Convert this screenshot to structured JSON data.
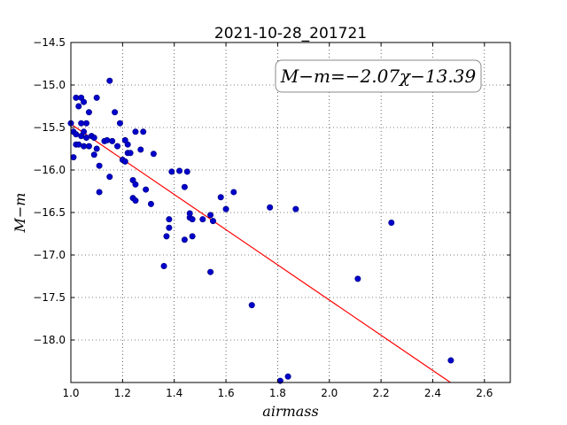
{
  "chart_data": {
    "type": "scatter",
    "title": "2021-10-28_201721",
    "xlabel": "airmass",
    "ylabel": "M−m",
    "annotation": "M−m=−2.07χ−13.39",
    "xlim": [
      1.0,
      2.7
    ],
    "ylim": [
      -14.5,
      -18.5
    ],
    "grid": true,
    "xticks": [
      "1.0",
      "1.2",
      "1.4",
      "1.6",
      "1.8",
      "2.0",
      "2.2",
      "2.4",
      "2.6"
    ],
    "yticks": [
      "−14.5",
      "−15.0",
      "−15.5",
      "−16.0",
      "−16.5",
      "−17.0",
      "−17.5",
      "−18.0"
    ],
    "colors": {
      "points": "#0000cc",
      "fit": "#ff0000"
    },
    "fit": {
      "slope": -2.07,
      "intercept": -13.39
    },
    "series": [
      {
        "x": [
          1.0,
          1.01,
          1.01,
          1.02,
          1.02,
          1.02,
          1.03,
          1.03,
          1.04,
          1.04,
          1.04,
          1.05,
          1.05,
          1.05,
          1.06,
          1.06,
          1.07,
          1.07,
          1.08,
          1.09,
          1.09,
          1.1,
          1.1,
          1.11,
          1.11,
          1.13,
          1.14,
          1.15,
          1.15,
          1.16,
          1.17,
          1.18,
          1.19,
          1.2,
          1.21,
          1.21,
          1.22,
          1.22,
          1.23,
          1.24,
          1.24,
          1.25,
          1.25,
          1.25,
          1.27,
          1.28,
          1.29,
          1.31,
          1.32,
          1.36,
          1.37,
          1.38,
          1.38,
          1.39,
          1.42,
          1.44,
          1.44,
          1.45,
          1.46,
          1.46,
          1.47,
          1.47,
          1.51,
          1.54,
          1.54,
          1.55,
          1.58,
          1.6,
          1.63,
          1.7,
          1.77,
          1.81,
          1.84,
          1.87,
          2.11,
          2.24,
          2.47
        ],
        "y": [
          -15.45,
          -15.85,
          -15.55,
          -15.7,
          -15.15,
          -15.58,
          -15.25,
          -15.7,
          -15.15,
          -15.45,
          -15.6,
          -15.2,
          -15.55,
          -15.72,
          -15.45,
          -15.62,
          -15.32,
          -15.72,
          -15.6,
          -15.82,
          -15.62,
          -15.15,
          -15.75,
          -15.95,
          -16.26,
          -15.66,
          -15.65,
          -16.08,
          -14.95,
          -15.66,
          -15.32,
          -15.72,
          -15.45,
          -15.88,
          -15.65,
          -15.9,
          -15.8,
          -15.7,
          -15.8,
          -16.12,
          -16.33,
          -15.55,
          -16.17,
          -16.36,
          -15.76,
          -15.55,
          -16.23,
          -16.4,
          -15.81,
          -17.13,
          -16.78,
          -16.68,
          -16.58,
          -16.02,
          -16.01,
          -16.82,
          -16.2,
          -16.02,
          -16.56,
          -16.51,
          -16.58,
          -16.78,
          -16.58,
          -16.53,
          -17.2,
          -16.6,
          -16.32,
          -16.46,
          -16.26,
          -17.59,
          -16.44,
          -18.48,
          -18.43,
          -16.46,
          -17.28,
          -16.62,
          -18.24
        ]
      }
    ]
  }
}
